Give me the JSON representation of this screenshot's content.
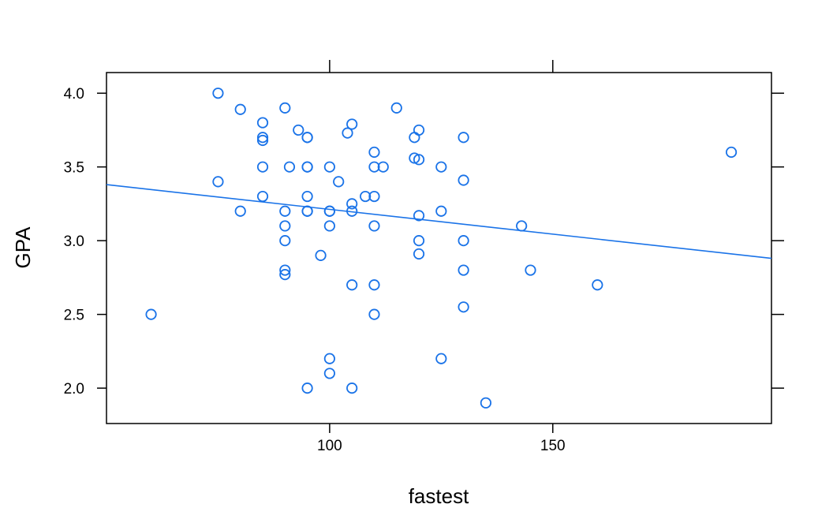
{
  "chart_data": {
    "type": "scatter",
    "xlabel": "fastest",
    "ylabel": "GPA",
    "xlim": [
      50,
      199
    ],
    "ylim": [
      1.76,
      4.14
    ],
    "x_ticks": [
      100,
      150
    ],
    "y_ticks": [
      2.0,
      2.5,
      3.0,
      3.5,
      4.0
    ],
    "x_tick_labels": [
      "100",
      "150"
    ],
    "y_tick_labels": [
      "2.0",
      "2.5",
      "3.0",
      "3.5",
      "4.0"
    ],
    "grid": false,
    "point_color": "#1a73e8",
    "line_color": "#1a73e8",
    "regression_line": {
      "x": [
        50,
        199
      ],
      "y": [
        3.38,
        2.88
      ]
    },
    "points": [
      [
        60,
        2.5
      ],
      [
        75,
        4.0
      ],
      [
        75,
        3.4
      ],
      [
        80,
        3.89
      ],
      [
        80,
        3.2
      ],
      [
        85,
        3.8
      ],
      [
        85,
        3.7
      ],
      [
        85,
        3.68
      ],
      [
        85,
        3.5
      ],
      [
        85,
        3.3
      ],
      [
        90,
        3.9
      ],
      [
        90,
        3.2
      ],
      [
        90,
        3.1
      ],
      [
        90,
        3.0
      ],
      [
        90,
        2.8
      ],
      [
        90,
        2.77
      ],
      [
        91,
        3.5
      ],
      [
        93,
        3.75
      ],
      [
        95,
        3.7
      ],
      [
        95,
        3.7
      ],
      [
        95,
        3.5
      ],
      [
        95,
        3.5
      ],
      [
        95,
        3.3
      ],
      [
        95,
        3.2
      ],
      [
        95,
        3.2
      ],
      [
        95,
        2.0
      ],
      [
        98,
        2.9
      ],
      [
        100,
        3.5
      ],
      [
        100,
        3.2
      ],
      [
        100,
        3.2
      ],
      [
        100,
        3.1
      ],
      [
        100,
        2.2
      ],
      [
        100,
        2.1
      ],
      [
        102,
        3.4
      ],
      [
        104,
        3.73
      ],
      [
        105,
        3.79
      ],
      [
        105,
        3.25
      ],
      [
        105,
        3.2
      ],
      [
        105,
        2.7
      ],
      [
        105,
        2.0
      ],
      [
        108,
        3.3
      ],
      [
        110,
        3.6
      ],
      [
        110,
        3.5
      ],
      [
        110,
        3.3
      ],
      [
        110,
        3.1
      ],
      [
        110,
        2.7
      ],
      [
        110,
        2.5
      ],
      [
        112,
        3.5
      ],
      [
        115,
        3.9
      ],
      [
        119,
        3.7
      ],
      [
        119,
        3.56
      ],
      [
        120,
        3.75
      ],
      [
        120,
        3.55
      ],
      [
        120,
        3.17
      ],
      [
        120,
        3.0
      ],
      [
        120,
        2.91
      ],
      [
        125,
        3.5
      ],
      [
        125,
        3.2
      ],
      [
        125,
        2.2
      ],
      [
        130,
        3.7
      ],
      [
        130,
        3.41
      ],
      [
        130,
        3.0
      ],
      [
        130,
        2.8
      ],
      [
        130,
        2.55
      ],
      [
        135,
        1.9
      ],
      [
        143,
        3.1
      ],
      [
        145,
        2.8
      ],
      [
        160,
        2.7
      ],
      [
        190,
        3.6
      ]
    ]
  }
}
